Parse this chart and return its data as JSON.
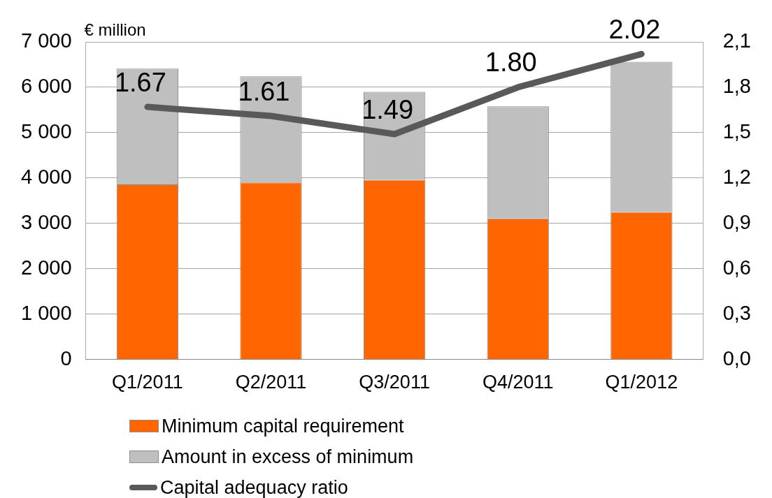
{
  "chart_data": {
    "type": "bar",
    "ylabel": "€ million",
    "stacked": true,
    "legend": "bottom",
    "grid": "y",
    "categories": [
      "Q1/2011",
      "Q2/2011",
      "Q3/2011",
      "Q4/2011",
      "Q1/2012"
    ],
    "series": [
      {
        "name": "Minimum capital requirement",
        "color": "#ff6600",
        "values": [
          3860,
          3900,
          3960,
          3110,
          3250
        ]
      },
      {
        "name": "Amount in excess of minimum",
        "color": "#bfbfbf",
        "values": [
          2550,
          2340,
          1940,
          2470,
          3310
        ]
      },
      {
        "name": "Capital adequacy ratio",
        "type": "line",
        "axis": "y2",
        "color": "#595959",
        "values": [
          1.67,
          1.61,
          1.49,
          1.8,
          2.02
        ],
        "value_labels": [
          "1.67",
          "1.61",
          "1.49",
          "1.80",
          "2.02"
        ]
      }
    ],
    "ylim": [
      0,
      7000
    ],
    "yticks": [
      {
        "value": 0,
        "label": "0"
      },
      {
        "value": 1000,
        "label": "1 000"
      },
      {
        "value": 2000,
        "label": "2 000"
      },
      {
        "value": 3000,
        "label": "3 000"
      },
      {
        "value": 4000,
        "label": "4 000"
      },
      {
        "value": 5000,
        "label": "5 000"
      },
      {
        "value": 6000,
        "label": "6 000"
      },
      {
        "value": 7000,
        "label": "7 000"
      }
    ],
    "y2lim": [
      0,
      2.1
    ],
    "y2ticks": [
      {
        "value": 0,
        "label": "0,0"
      },
      {
        "value": 0.3,
        "label": "0,3"
      },
      {
        "value": 0.6,
        "label": "0,6"
      },
      {
        "value": 0.9,
        "label": "0,9"
      },
      {
        "value": 1.2,
        "label": "1,2"
      },
      {
        "value": 1.5,
        "label": "1,5"
      },
      {
        "value": 1.8,
        "label": "1,8"
      },
      {
        "value": 2.1,
        "label": "2,1"
      }
    ]
  }
}
